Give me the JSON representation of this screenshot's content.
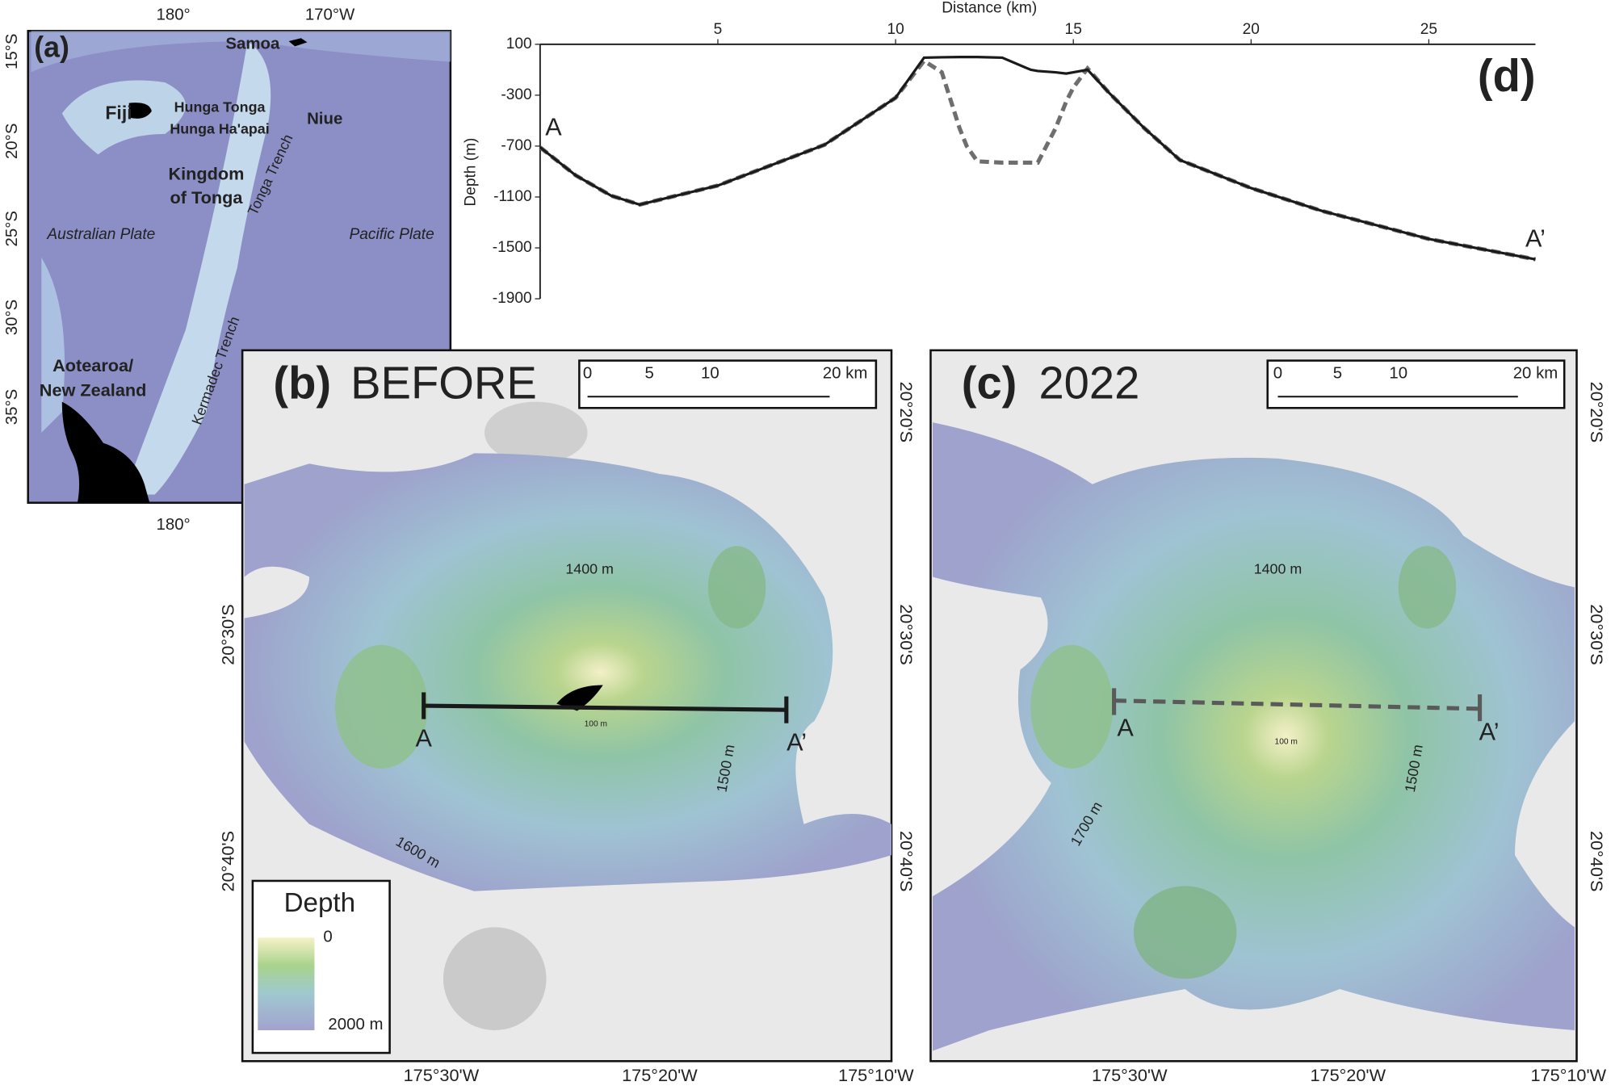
{
  "panel_a": {
    "label": "(a)",
    "top_ticks": [
      "180°",
      "170°W"
    ],
    "bottom_ticks": [
      "180°"
    ],
    "lat_ticks": [
      "15°S",
      "20°S",
      "25°S",
      "30°S",
      "35°S"
    ],
    "places": [
      "Samoa",
      "Fiji",
      "Hunga Tonga",
      "Hunga Ha'apai",
      "Niue",
      "Kingdom",
      "of Tonga",
      "Australian Plate",
      "Pacific Plate",
      "Tonga Trench",
      "Kermadec Trench",
      "Aotearoa/",
      "New Zealand"
    ]
  },
  "panel_b": {
    "label": "(b)",
    "title": "BEFORE",
    "scale": [
      "0",
      "5",
      "10",
      "20 km"
    ],
    "contours": [
      "1400 m",
      "1500 m",
      "1600 m",
      "100 m"
    ],
    "profile_ends": [
      "A",
      "A’"
    ],
    "lat_ticks_left": [
      "20°30'S",
      "20°40'S"
    ],
    "lat_ticks_right": [
      "20°20'S",
      "20°30'S",
      "20°40'S"
    ],
    "lon_ticks": [
      "175°30'W",
      "175°20'W",
      "175°10'W"
    ],
    "legend": {
      "title": "Depth",
      "top": "0",
      "bottom": "2000 m"
    }
  },
  "panel_c": {
    "label": "(c)",
    "title": "2022",
    "scale": [
      "0",
      "5",
      "10",
      "20 km"
    ],
    "contours": [
      "1400 m",
      "1500 m",
      "1700 m",
      "100 m"
    ],
    "profile_ends": [
      "A",
      "A’"
    ],
    "lat_ticks_right": [
      "20°20'S",
      "20°30'S",
      "20°40'S"
    ],
    "lon_ticks": [
      "175°30'W",
      "175°20'W",
      "175°10'W"
    ]
  },
  "chart_data": {
    "type": "line",
    "panel_label": "(d)",
    "x_label": "Distance (km)",
    "y_label": "Depth (m)",
    "annotations": [
      "A",
      "A’"
    ],
    "x": [
      0,
      1,
      2,
      2.8,
      5,
      8,
      10,
      10.8,
      11.3,
      11.8,
      12,
      12.3,
      13,
      13.8,
      14,
      14.5,
      14.8,
      15,
      15.4,
      16,
      17,
      18,
      20,
      22,
      25,
      28
    ],
    "series": [
      {
        "color": "#1a1a1a",
        "dash": false,
        "values": [
          -710,
          -930,
          -1090,
          -1160,
          -1010,
          -690,
          -320,
          -5,
          -2,
          0,
          0,
          0,
          -5,
          -100,
          -110,
          -120,
          -130,
          -120,
          -100,
          -280,
          -560,
          -810,
          -1030,
          -1210,
          -1430,
          -1590
        ]
      },
      {
        "color": "#6e6e6e",
        "dash": true,
        "values": [
          -710,
          -930,
          -1090,
          -1160,
          -1010,
          -690,
          -320,
          -30,
          -120,
          -560,
          -700,
          -820,
          -830,
          -830,
          -830,
          -560,
          -350,
          -240,
          -90,
          -280,
          -560,
          -810,
          -1030,
          -1210,
          -1430,
          -1590
        ]
      }
    ],
    "xlim": [
      0,
      28
    ],
    "xticks": [
      5,
      10,
      15,
      20,
      25
    ],
    "ylim": [
      -1900,
      100
    ],
    "yticks": [
      100,
      -300,
      -700,
      -1100,
      -1500,
      -1900
    ]
  }
}
